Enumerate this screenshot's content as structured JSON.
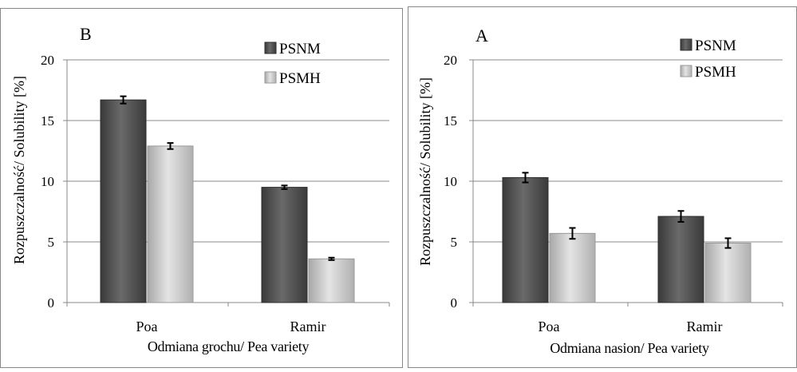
{
  "chart_data": [
    {
      "type": "bar",
      "panel_label": "B",
      "categories": [
        "Poa",
        "Ramir"
      ],
      "series": [
        {
          "name": "PSNM",
          "values": [
            16.7,
            9.5
          ],
          "errors": [
            0.3,
            0.15
          ],
          "color": "#4a4a4a"
        },
        {
          "name": "PSMH",
          "values": [
            12.9,
            3.6
          ],
          "errors": [
            0.25,
            0.1
          ],
          "color": "#c8c8c8"
        }
      ],
      "xlabel": "Odmiana grochu/ Pea variety",
      "ylabel": "Rozpuszczalność/ Solubility [%]",
      "ylim": [
        0,
        20
      ],
      "yticks": [
        "0",
        "5",
        "10",
        "15",
        "20"
      ],
      "grid": true,
      "legend_position": "top-right"
    },
    {
      "type": "bar",
      "panel_label": "A",
      "categories": [
        "Poa",
        "Ramir"
      ],
      "series": [
        {
          "name": "PSNM",
          "values": [
            10.3,
            7.1
          ],
          "errors": [
            0.4,
            0.45
          ],
          "color": "#4a4a4a"
        },
        {
          "name": "PSMH",
          "values": [
            5.7,
            4.9
          ],
          "errors": [
            0.45,
            0.4
          ],
          "color": "#c8c8c8"
        }
      ],
      "xlabel": "Odmiana nasion/ Pea variety",
      "ylabel": "Rozpuszczalność/ Solubility [%]",
      "ylim": [
        0,
        20
      ],
      "yticks": [
        "0",
        "5",
        "10",
        "15",
        "20"
      ],
      "grid": true,
      "legend_position": "top-right"
    }
  ]
}
